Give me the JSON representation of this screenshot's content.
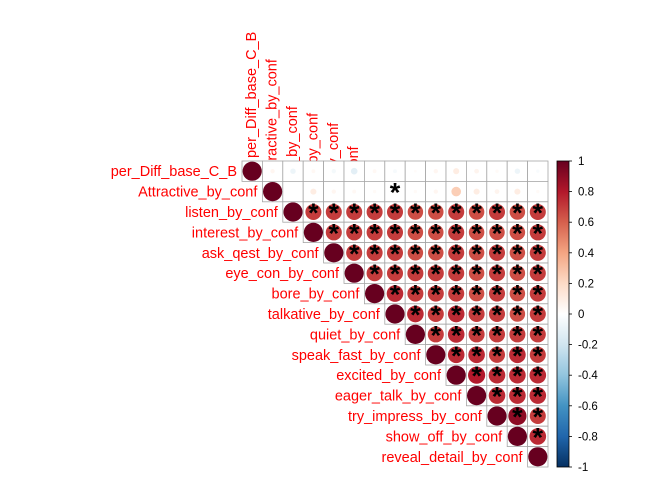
{
  "chart_data": {
    "type": "heatmap",
    "subtype": "corrplot-upper-circle",
    "variables": [
      "per_Diff_base_C_B",
      "Attractive_by_conf",
      "listen_by_conf",
      "interest_by_conf",
      "ask_qest_by_conf",
      "eye_con_by_conf",
      "bore_by_conf",
      "talkative_by_conf",
      "quiet_by_conf",
      "speak_fast_by_conf",
      "excited_by_conf",
      "eager_talk_by_conf",
      "try_impress_by_conf",
      "show_off_by_conf",
      "reveal_detail_by_conf"
    ],
    "matrix": [
      [
        1.0,
        0.05,
        -0.08,
        0.04,
        -0.05,
        -0.12,
        0.04,
        -0.04,
        0.02,
        0.05,
        0.1,
        0.06,
        0.03,
        -0.08,
        -0.03
      ],
      [
        0.05,
        1.0,
        0.0,
        0.1,
        0.05,
        0.04,
        0.03,
        0.03,
        0.03,
        0.05,
        0.25,
        0.1,
        0.06,
        0.1,
        0.03
      ],
      [
        -0.08,
        0.0,
        1.0,
        0.7,
        0.7,
        0.7,
        0.7,
        0.7,
        0.65,
        0.65,
        0.7,
        0.65,
        0.7,
        0.65,
        0.7
      ],
      [
        0.04,
        0.1,
        0.7,
        1.0,
        0.7,
        0.7,
        0.7,
        0.7,
        0.65,
        0.65,
        0.7,
        0.65,
        0.65,
        0.65,
        0.7
      ],
      [
        -0.05,
        0.05,
        0.7,
        0.7,
        1.0,
        0.7,
        0.7,
        0.7,
        0.65,
        0.65,
        0.7,
        0.65,
        0.7,
        0.65,
        0.7
      ],
      [
        -0.12,
        0.04,
        0.7,
        0.7,
        0.7,
        1.0,
        0.7,
        0.7,
        0.7,
        0.7,
        0.7,
        0.65,
        0.7,
        0.65,
        0.7
      ],
      [
        0.04,
        0.03,
        0.7,
        0.7,
        0.7,
        0.7,
        1.0,
        0.75,
        0.7,
        0.7,
        0.7,
        0.65,
        0.7,
        0.65,
        0.7
      ],
      [
        -0.04,
        0.03,
        0.7,
        0.7,
        0.7,
        0.7,
        0.75,
        1.0,
        0.75,
        0.7,
        0.75,
        0.7,
        0.7,
        0.65,
        0.7
      ],
      [
        0.02,
        0.03,
        0.65,
        0.65,
        0.65,
        0.7,
        0.7,
        0.75,
        1.0,
        0.7,
        0.75,
        0.7,
        0.7,
        0.7,
        0.7
      ],
      [
        0.05,
        0.05,
        0.65,
        0.65,
        0.65,
        0.7,
        0.7,
        0.7,
        0.7,
        1.0,
        0.75,
        0.75,
        0.7,
        0.75,
        0.7
      ],
      [
        0.1,
        0.25,
        0.7,
        0.7,
        0.7,
        0.7,
        0.7,
        0.75,
        0.75,
        0.75,
        1.0,
        0.8,
        0.75,
        0.75,
        0.75
      ],
      [
        0.06,
        0.1,
        0.65,
        0.65,
        0.65,
        0.65,
        0.65,
        0.7,
        0.7,
        0.75,
        0.8,
        1.0,
        0.75,
        0.75,
        0.75
      ],
      [
        0.03,
        0.06,
        0.7,
        0.65,
        0.7,
        0.7,
        0.7,
        0.7,
        0.7,
        0.7,
        0.75,
        0.75,
        1.0,
        0.9,
        0.7
      ],
      [
        -0.08,
        0.1,
        0.65,
        0.65,
        0.65,
        0.65,
        0.65,
        0.65,
        0.7,
        0.75,
        0.75,
        0.75,
        0.9,
        1.0,
        0.75
      ],
      [
        -0.03,
        0.03,
        0.7,
        0.7,
        0.7,
        0.7,
        0.7,
        0.7,
        0.7,
        0.7,
        0.75,
        0.75,
        0.7,
        0.75,
        1.0
      ]
    ],
    "significant_marker": "*",
    "significant_pairs": [
      [
        1,
        7
      ],
      [
        2,
        3
      ],
      [
        2,
        4
      ],
      [
        2,
        5
      ],
      [
        2,
        6
      ],
      [
        2,
        7
      ],
      [
        2,
        8
      ],
      [
        2,
        9
      ],
      [
        2,
        10
      ],
      [
        2,
        11
      ],
      [
        2,
        12
      ],
      [
        2,
        13
      ],
      [
        2,
        14
      ],
      [
        3,
        4
      ],
      [
        3,
        5
      ],
      [
        3,
        6
      ],
      [
        3,
        7
      ],
      [
        3,
        8
      ],
      [
        3,
        9
      ],
      [
        3,
        10
      ],
      [
        3,
        11
      ],
      [
        3,
        12
      ],
      [
        3,
        13
      ],
      [
        3,
        14
      ],
      [
        4,
        5
      ],
      [
        4,
        6
      ],
      [
        4,
        7
      ],
      [
        4,
        8
      ],
      [
        4,
        9
      ],
      [
        4,
        10
      ],
      [
        4,
        11
      ],
      [
        4,
        12
      ],
      [
        4,
        13
      ],
      [
        4,
        14
      ],
      [
        5,
        6
      ],
      [
        5,
        7
      ],
      [
        5,
        8
      ],
      [
        5,
        9
      ],
      [
        5,
        10
      ],
      [
        5,
        11
      ],
      [
        5,
        12
      ],
      [
        5,
        13
      ],
      [
        5,
        14
      ],
      [
        6,
        7
      ],
      [
        6,
        8
      ],
      [
        6,
        9
      ],
      [
        6,
        10
      ],
      [
        6,
        11
      ],
      [
        6,
        12
      ],
      [
        6,
        13
      ],
      [
        6,
        14
      ],
      [
        7,
        8
      ],
      [
        7,
        9
      ],
      [
        7,
        10
      ],
      [
        7,
        11
      ],
      [
        7,
        12
      ],
      [
        7,
        13
      ],
      [
        7,
        14
      ],
      [
        8,
        9
      ],
      [
        8,
        10
      ],
      [
        8,
        11
      ],
      [
        8,
        12
      ],
      [
        8,
        13
      ],
      [
        8,
        14
      ],
      [
        9,
        10
      ],
      [
        9,
        11
      ],
      [
        9,
        12
      ],
      [
        9,
        13
      ],
      [
        9,
        14
      ],
      [
        10,
        11
      ],
      [
        10,
        12
      ],
      [
        10,
        13
      ],
      [
        10,
        14
      ],
      [
        11,
        12
      ],
      [
        11,
        13
      ],
      [
        11,
        14
      ],
      [
        12,
        13
      ],
      [
        12,
        14
      ],
      [
        13,
        14
      ]
    ],
    "colorbar": {
      "range": [
        -1,
        1
      ],
      "ticks": [
        "1",
        "0.8",
        "0.6",
        "0.4",
        "0.2",
        "0",
        "-0.2",
        "-0.4",
        "-0.6",
        "-0.8",
        "-1"
      ],
      "colors": [
        "#67001F",
        "#B2182B",
        "#D6604D",
        "#F4A582",
        "#FDDBC7",
        "#FFFFFF",
        "#D1E5F0",
        "#92C5DE",
        "#4393C3",
        "#2166AC",
        "#053061"
      ]
    },
    "label_color": "#FF0000",
    "grid": true,
    "legend_position": "right"
  }
}
